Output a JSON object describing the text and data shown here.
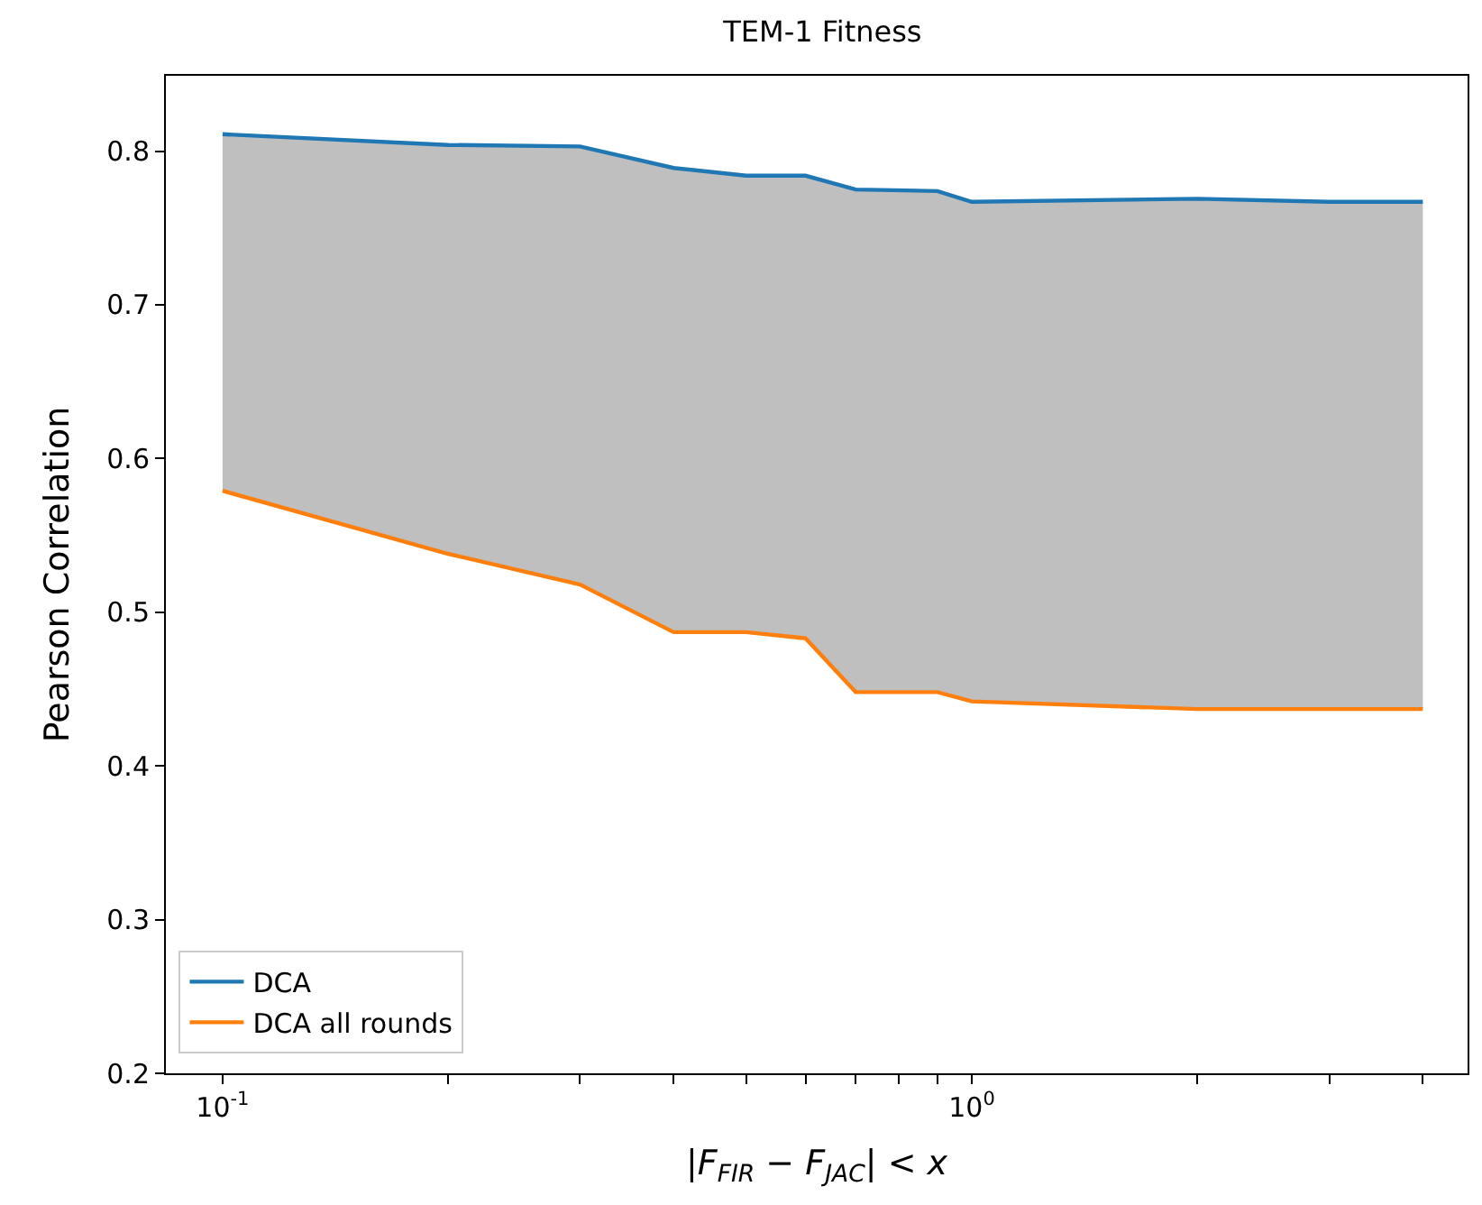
{
  "chart_data": {
    "type": "line",
    "title": "TEM-1 Fitness",
    "xlabel": "|F$_{FIR}$ − F$_{JAC}$| < x",
    "ylabel": "Pearson Correlation",
    "x": [
      0.1,
      0.2,
      0.3,
      0.4,
      0.5,
      0.6,
      0.7,
      0.9,
      1.0,
      2,
      3,
      4
    ],
    "series": [
      {
        "name": "DCA",
        "color": "#1f77b4",
        "values": [
          0.811,
          0.804,
          0.803,
          0.789,
          0.784,
          0.784,
          0.775,
          0.774,
          0.767,
          0.769,
          0.767,
          0.767
        ],
        "lower": [
          0.579,
          0.538,
          0.518,
          0.487,
          0.487,
          0.483,
          0.448,
          0.448,
          0.442,
          0.437,
          0.437,
          0.437
        ],
        "upper": [
          0.811,
          0.804,
          0.803,
          0.789,
          0.784,
          0.784,
          0.775,
          0.774,
          0.767,
          0.769,
          0.767,
          0.767
        ]
      },
      {
        "name": "DCA all rounds",
        "color": "#ff7f0e",
        "values": [
          0.579,
          0.538,
          0.518,
          0.487,
          0.487,
          0.483,
          0.448,
          0.448,
          0.442,
          0.437,
          0.437,
          0.437
        ]
      }
    ],
    "log": "x",
    "xlim": [
      0.084,
      4.59
    ],
    "ylim": [
      0.2,
      0.849
    ],
    "xticks": [
      {
        "value": 0.1,
        "label": "10$^{-1}$"
      },
      {
        "value": 0.2,
        "label": null
      },
      {
        "value": 0.3,
        "label": null
      },
      {
        "value": 0.4,
        "label": null
      },
      {
        "value": 0.5,
        "label": null
      },
      {
        "value": 0.6,
        "label": null
      },
      {
        "value": 0.7,
        "label": null
      },
      {
        "value": 0.8,
        "label": null
      },
      {
        "value": 0.9,
        "label": null
      },
      {
        "value": 1,
        "label": "10$^{0}$"
      },
      {
        "value": 2,
        "label": null
      },
      {
        "value": 3,
        "label": null
      },
      {
        "value": 4,
        "label": null
      }
    ],
    "yticks": [
      0.2,
      0.3,
      0.4,
      0.5,
      0.6,
      0.7,
      0.8
    ],
    "legend": "bottom left",
    "marker": "none",
    "line_style": "solid"
  }
}
